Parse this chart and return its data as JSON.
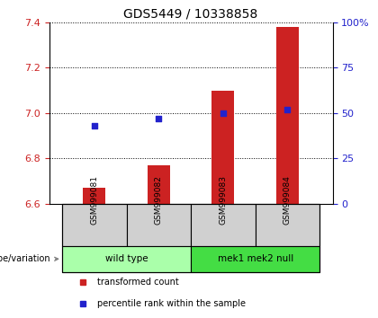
{
  "title": "GDS5449 / 10338858",
  "samples": [
    "GSM999081",
    "GSM999082",
    "GSM999083",
    "GSM999084"
  ],
  "transformed_count": [
    6.67,
    6.77,
    7.1,
    7.38
  ],
  "percentile_rank": [
    43,
    47,
    50,
    52
  ],
  "ylim_left": [
    6.6,
    7.4
  ],
  "ylim_right": [
    0,
    100
  ],
  "yticks_left": [
    6.6,
    6.8,
    7.0,
    7.2,
    7.4
  ],
  "yticks_right": [
    0,
    25,
    50,
    75,
    100
  ],
  "ytick_labels_right": [
    "0",
    "25",
    "50",
    "75",
    "100%"
  ],
  "bar_color": "#cc2222",
  "dot_color": "#2222cc",
  "bar_width": 0.35,
  "groups": [
    {
      "label": "wild type",
      "indices": [
        0,
        1
      ],
      "color": "#aaffaa"
    },
    {
      "label": "mek1 mek2 null",
      "indices": [
        2,
        3
      ],
      "color": "#44dd44"
    }
  ],
  "genotype_label": "genotype/variation",
  "legend_items": [
    {
      "label": "transformed count",
      "color": "#cc2222",
      "marker": "s"
    },
    {
      "label": "percentile rank within the sample",
      "color": "#2222cc",
      "marker": "s"
    }
  ],
  "grid_color": "#000000",
  "grid_linestyle": "dotted",
  "background_color": "#ffffff",
  "plot_bg_color": "#ffffff"
}
